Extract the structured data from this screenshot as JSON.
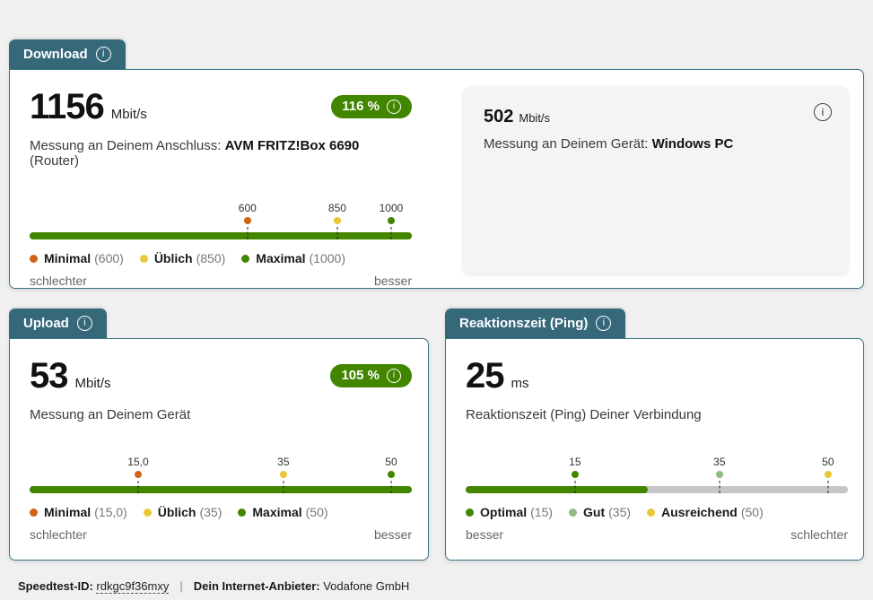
{
  "icons": {
    "info_glyph": "i"
  },
  "colors": {
    "teal": "#35697a",
    "green": "#428600",
    "orange": "#d06316",
    "yellow": "#eac736",
    "light_green": "#8fbc7f",
    "track_gray": "#c6c6c6",
    "panel_gray": "#f4f4f4",
    "page_bg": "#f0f0f0"
  },
  "cards": {
    "download": {
      "tab_label": "Download",
      "value": "1156",
      "unit": "Mbit/s",
      "badge_percent": "116 %",
      "desc_prefix": "Messung an Deinem Anschluss: ",
      "desc_bold": "AVM FRITZ!Box 6690",
      "desc_suffix": " (Router)",
      "scale": {
        "fill_pct": 100,
        "fill_color": "#428600",
        "track_color": "#c6c6c6",
        "markers": [
          {
            "label": "600",
            "value": 600,
            "pos_pct": 57.0,
            "color": "#d06316"
          },
          {
            "label": "850",
            "value": 850,
            "pos_pct": 80.5,
            "color": "#eac736"
          },
          {
            "label": "1000",
            "value": 1000,
            "pos_pct": 94.6,
            "color": "#428600"
          }
        ],
        "legend": [
          {
            "name": "Minimal",
            "value": "(600)",
            "color": "#d06316"
          },
          {
            "name": "Üblich",
            "value": "(850)",
            "color": "#eac736"
          },
          {
            "name": "Maximal",
            "value": "(1000)",
            "color": "#428600"
          }
        ]
      },
      "left_label": "schlechter",
      "right_label": "besser",
      "device_panel": {
        "value": "502",
        "unit": "Mbit/s",
        "desc_prefix": "Messung an Deinem Gerät: ",
        "desc_bold": "Windows PC"
      }
    },
    "upload": {
      "tab_label": "Upload",
      "value": "53",
      "unit": "Mbit/s",
      "badge_percent": "105 %",
      "desc": "Messung an Deinem Gerät",
      "scale": {
        "fill_pct": 100,
        "fill_color": "#428600",
        "track_color": "#c6c6c6",
        "markers": [
          {
            "label": "15,0",
            "value": 15,
            "pos_pct": 28.4,
            "color": "#d06316"
          },
          {
            "label": "35",
            "value": 35,
            "pos_pct": 66.4,
            "color": "#eac736"
          },
          {
            "label": "50",
            "value": 50,
            "pos_pct": 94.6,
            "color": "#428600"
          }
        ],
        "legend": [
          {
            "name": "Minimal",
            "value": "(15,0)",
            "color": "#d06316"
          },
          {
            "name": "Üblich",
            "value": "(35)",
            "color": "#eac736"
          },
          {
            "name": "Maximal",
            "value": "(50)",
            "color": "#428600"
          }
        ]
      },
      "left_label": "schlechter",
      "right_label": "besser"
    },
    "ping": {
      "tab_label": "Reaktionszeit (Ping)",
      "value": "25",
      "unit": "ms",
      "desc": "Reaktionszeit (Ping) Deiner Verbindung",
      "scale": {
        "fill_pct": 47.6,
        "fill_color": "#428600",
        "track_color": "#c6c6c6",
        "markers": [
          {
            "label": "15",
            "value": 15,
            "pos_pct": 28.6,
            "color": "#428600"
          },
          {
            "label": "35",
            "value": 35,
            "pos_pct": 66.4,
            "color": "#8fbc7f"
          },
          {
            "label": "50",
            "value": 50,
            "pos_pct": 94.8,
            "color": "#eac736"
          }
        ],
        "legend": [
          {
            "name": "Optimal",
            "value": "(15)",
            "color": "#428600"
          },
          {
            "name": "Gut",
            "value": "(35)",
            "color": "#8fbc7f"
          },
          {
            "name": "Ausreichend",
            "value": "(50)",
            "color": "#eac736"
          }
        ]
      },
      "left_label": "besser",
      "right_label": "schlechter"
    }
  },
  "footer": {
    "id_label": "Speedtest-ID:",
    "id_value": "rdkgc9f36mxy",
    "separator": "|",
    "provider_label": "Dein Internet-Anbieter:",
    "provider_value": "Vodafone GmbH"
  }
}
